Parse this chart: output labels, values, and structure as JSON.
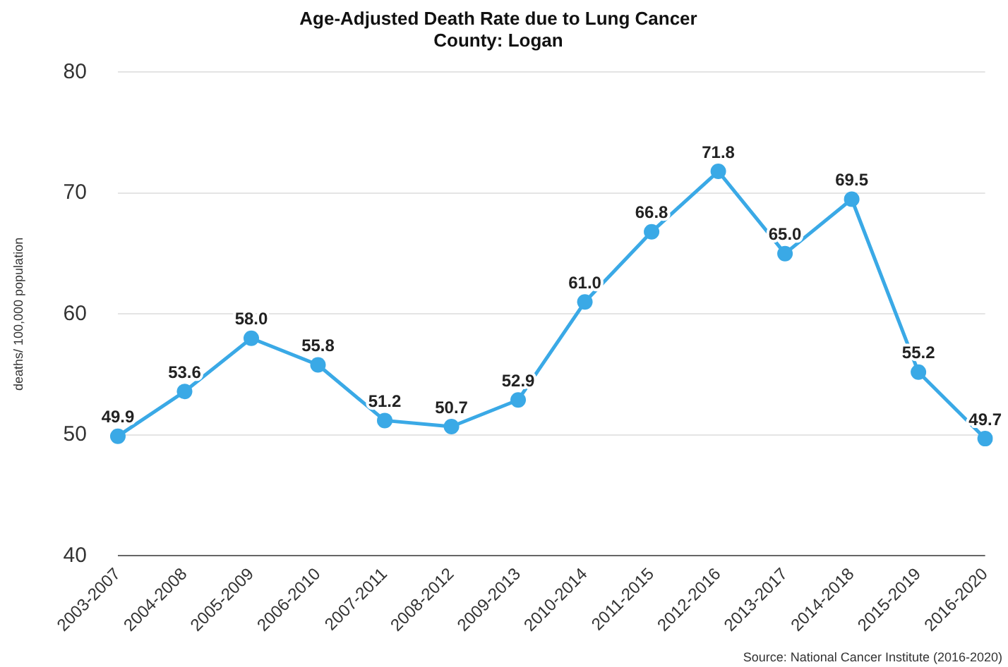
{
  "chart_data": {
    "type": "line",
    "title": "Age-Adjusted Death Rate due to Lung Cancer\nCounty: Logan",
    "ylabel": "deaths/ 100,000 population",
    "categories": [
      "2003-2007",
      "2004-2008",
      "2005-2009",
      "2006-2010",
      "2007-2011",
      "2008-2012",
      "2009-2013",
      "2010-2014",
      "2011-2015",
      "2012-2016",
      "2013-2017",
      "2014-2018",
      "2015-2019",
      "2016-2020"
    ],
    "series": [
      {
        "color": "#3aa9e6",
        "values": [
          49.9,
          53.6,
          58.0,
          55.8,
          51.2,
          50.7,
          52.9,
          61.0,
          66.8,
          71.8,
          65.0,
          69.5,
          55.2,
          49.7
        ],
        "value_labels": [
          "49.9",
          "53.6",
          "58.0",
          "55.8",
          "51.2",
          "50.7",
          "52.9",
          "61.0",
          "66.8",
          "71.8",
          "65.0",
          "69.5",
          "55.2",
          "49.7"
        ]
      }
    ],
    "ylim": [
      40,
      80
    ],
    "yticks": [
      40,
      50,
      60,
      70,
      80
    ],
    "grid": "y",
    "legend": false,
    "marker": "circle",
    "line_style": "solid",
    "annotations": [
      "Source: National Cancer Institute (2016-2020)"
    ]
  }
}
